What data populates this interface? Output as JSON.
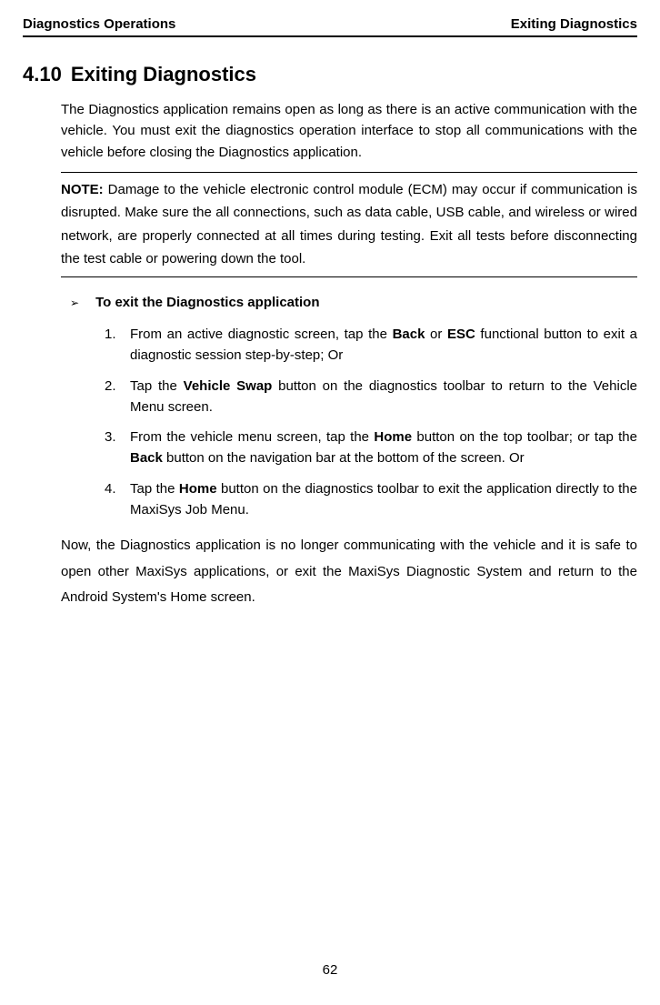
{
  "header": {
    "left": "Diagnostics Operations",
    "right": "Exiting Diagnostics"
  },
  "section": {
    "number": "4.10",
    "title": "Exiting Diagnostics"
  },
  "intro": "The Diagnostics application remains open as long as there is an active communication with the vehicle. You must exit the diagnostics operation interface to stop all communications with the vehicle before closing the Diagnostics application.",
  "note": {
    "label": "NOTE:",
    "text": " Damage to the vehicle electronic control module (ECM) may occur if communication is disrupted. Make sure the all connections, such as data cable, USB cable, and wireless or wired network, are properly connected at all times during testing. Exit all tests before disconnecting the test cable or powering down the tool."
  },
  "procedure": {
    "marker": "➢",
    "title": "To exit the Diagnostics application",
    "steps": [
      {
        "num": "1.",
        "pre": "From an active diagnostic screen, tap the ",
        "bold1": "Back",
        "mid": " or ",
        "bold2": "ESC",
        "post": " functional button to exit a diagnostic session step-by-step; Or"
      },
      {
        "num": "2.",
        "pre": "Tap the ",
        "bold1": "Vehicle Swap",
        "mid": "",
        "bold2": "",
        "post": " button on the diagnostics toolbar to return to the Vehicle Menu screen."
      },
      {
        "num": "3.",
        "pre": "From the vehicle menu screen, tap the ",
        "bold1": "Home",
        "mid": " button on the top toolbar; or tap the ",
        "bold2": "Back",
        "post": " button on the navigation bar at the bottom of the screen. Or"
      },
      {
        "num": "4.",
        "pre": "Tap the ",
        "bold1": "Home",
        "mid": "",
        "bold2": "",
        "post": " button on the diagnostics toolbar to exit the application directly to the MaxiSys Job Menu."
      }
    ]
  },
  "closing": "Now, the Diagnostics application is no longer communicating with the vehicle and it is safe to open other MaxiSys applications, or exit the MaxiSys Diagnostic System and return to the Android System's Home screen.",
  "page_number": "62"
}
